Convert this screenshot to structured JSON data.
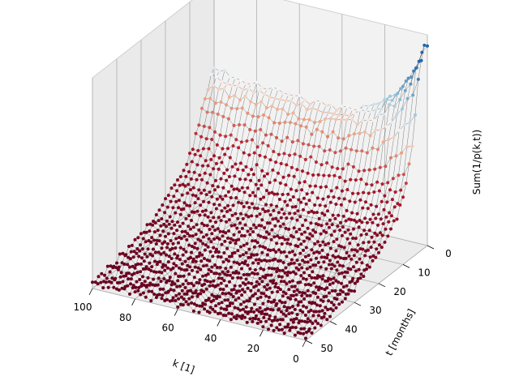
{
  "chart_data": {
    "type": "scatter",
    "projection": "3d",
    "title": "",
    "xlabel": "k [1]",
    "ylabel": "t [months]",
    "zlabel": "Sum(1/p(k,t))",
    "x_ticks": [
      "0",
      "20",
      "40",
      "60",
      "80",
      "100"
    ],
    "y_ticks": [
      "0",
      "10",
      "20",
      "30",
      "40",
      "50"
    ],
    "z_ticks": [],
    "xlim": [
      0,
      100
    ],
    "ylim": [
      0,
      50
    ],
    "grid": true,
    "colormap": "RdBu",
    "colors": {
      "low": "#67001f",
      "mid": "#f4a582",
      "high": "#2166ac",
      "wire": "#000000"
    },
    "surface": {
      "k_range": [
        0,
        100
      ],
      "t_range": [
        0,
        50
      ],
      "description_points": [
        {
          "k": 0,
          "t": 0,
          "z": 0.92
        },
        {
          "k": 0,
          "t": 5,
          "z": 0.7
        },
        {
          "k": 0,
          "t": 20,
          "z": 0.25
        },
        {
          "k": 0,
          "t": 50,
          "z": 0.05
        },
        {
          "k": 50,
          "t": 0,
          "z": 0.45
        },
        {
          "k": 100,
          "t": 0,
          "z": 0.35
        },
        {
          "k": 100,
          "t": 50,
          "z": 0.03
        }
      ]
    }
  }
}
